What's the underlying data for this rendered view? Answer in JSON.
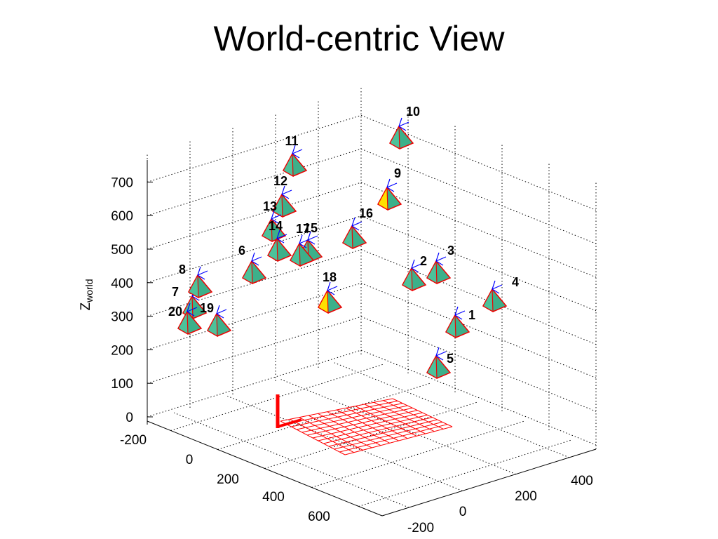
{
  "title": "World-centric View",
  "plot": {
    "z_axis": {
      "label": {
        "symbol": "Z",
        "subscript": "world"
      },
      "ticks": [
        "0",
        "100",
        "200",
        "300",
        "400",
        "500",
        "600",
        "700"
      ]
    },
    "x_axis": {
      "ticks": [
        "-200",
        "0",
        "200",
        "400",
        "600"
      ]
    },
    "y_axis": {
      "ticks": [
        "-200",
        "0",
        "200",
        "400"
      ]
    },
    "cameras": [
      {
        "label": "1"
      },
      {
        "label": "2"
      },
      {
        "label": "3"
      },
      {
        "label": "4"
      },
      {
        "label": "5"
      },
      {
        "label": "6"
      },
      {
        "label": "7"
      },
      {
        "label": "8"
      },
      {
        "label": "9"
      },
      {
        "label": "10"
      },
      {
        "label": "11"
      },
      {
        "label": "12"
      },
      {
        "label": "13"
      },
      {
        "label": "14"
      },
      {
        "label": "15"
      },
      {
        "label": "16"
      },
      {
        "label": "17"
      },
      {
        "label": "18"
      },
      {
        "label": "19"
      },
      {
        "label": "20"
      }
    ]
  }
}
